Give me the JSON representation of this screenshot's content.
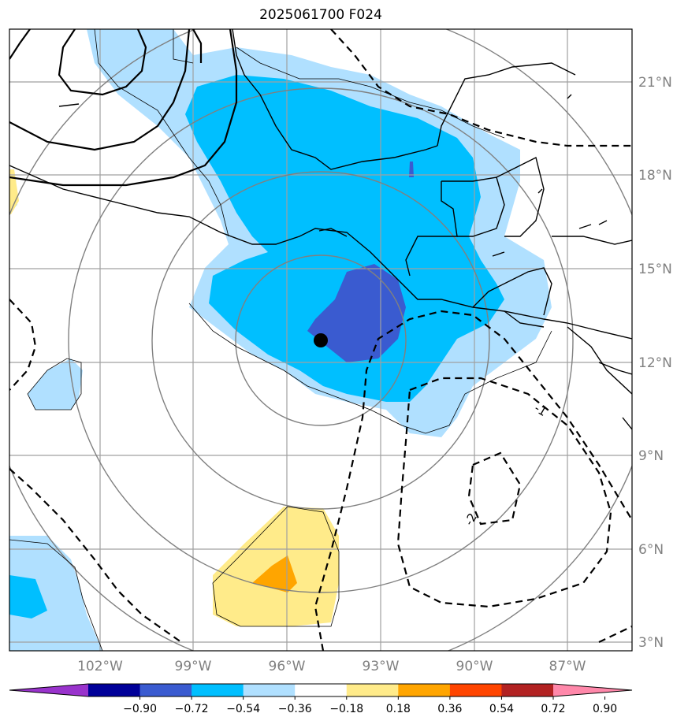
{
  "title": "2025061700 F024",
  "lat_labels": [
    "21°N",
    "18°N",
    "15°N",
    "12°N",
    "9°N",
    "6°N",
    "3°N"
  ],
  "lon_labels": [
    "102°W",
    "99°W",
    "96°W",
    "93°W",
    "90°W",
    "87°W"
  ],
  "contour_labels": [
    "-1",
    "-2"
  ],
  "colorbar": {
    "ticks": [
      "−0.90",
      "−0.72",
      "−0.54",
      "−0.36",
      "−0.18",
      "0.18",
      "0.36",
      "0.54",
      "0.72",
      "0.90"
    ],
    "colors": [
      "#9933cc",
      "#000099",
      "#3a5bd0",
      "#00bfff",
      "#b0e0ff",
      "#ffffff",
      "#ffeb8a",
      "#ffa500",
      "#ff4500",
      "#b22222",
      "#ff88aa"
    ]
  },
  "colors": {
    "very_light_blue": "#b0e0ff",
    "deep_sky_blue": "#00bfff",
    "royal_blue": "#3a5bd0",
    "light_yellow": "#ffeb8a",
    "orange": "#ffa500"
  }
}
